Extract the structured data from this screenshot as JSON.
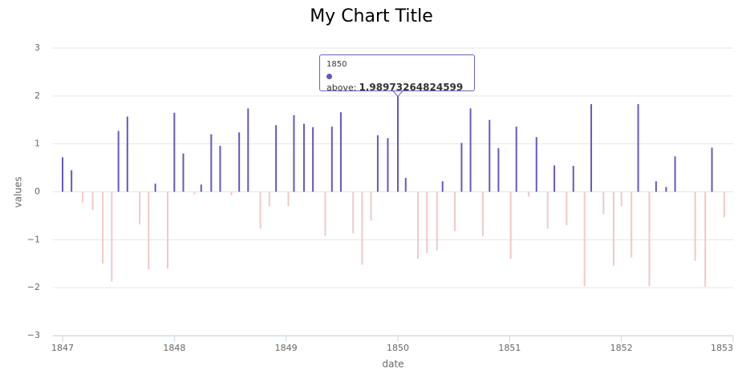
{
  "chart_data": {
    "type": "bar",
    "title": "My Chart Title",
    "x_label": "date",
    "y_label": "values",
    "x": [
      1847.0,
      1847.08,
      1847.18,
      1847.27,
      1847.36,
      1847.44,
      1847.5,
      1847.58,
      1847.69,
      1847.77,
      1847.83,
      1847.94,
      1848.0,
      1848.08,
      1848.18,
      1848.24,
      1848.33,
      1848.41,
      1848.51,
      1848.58,
      1848.66,
      1848.77,
      1848.85,
      1848.91,
      1849.02,
      1849.07,
      1849.16,
      1849.24,
      1849.35,
      1849.41,
      1849.49,
      1849.6,
      1849.68,
      1849.76,
      1849.82,
      1849.91,
      1850,
      1850.07,
      1850.18,
      1850.26,
      1850.35,
      1850.4,
      1850.51,
      1850.57,
      1850.65,
      1850.76,
      1850.82,
      1850.9,
      1851.01,
      1851.06,
      1851.17,
      1851.24,
      1851.34,
      1851.4,
      1851.51,
      1851.57,
      1851.67,
      1851.73,
      1851.84,
      1851.93,
      1852.0,
      1852.09,
      1852.15,
      1852.25,
      1852.31,
      1852.4,
      1852.48,
      1852.66,
      1852.75,
      1852.81,
      1852.92
    ],
    "series": [
      {
        "name": "above",
        "color": "#6457c4",
        "negative_color": "#efc9c9",
        "values": [
          0.72,
          0.45,
          -0.22,
          -0.38,
          -1.5,
          -1.87,
          1.27,
          1.57,
          -0.68,
          -1.62,
          0.17,
          -1.6,
          1.65,
          0.8,
          -0.05,
          0.15,
          1.2,
          0.96,
          -0.07,
          1.24,
          1.74,
          -0.77,
          -0.3,
          1.39,
          -0.3,
          1.6,
          1.42,
          1.35,
          -0.92,
          1.36,
          1.66,
          -0.87,
          -1.52,
          -0.6,
          1.18,
          1.12,
          1.98973264824599,
          0.29,
          -1.4,
          -1.28,
          -1.22,
          0.22,
          -0.82,
          1.02,
          1.74,
          -0.93,
          1.5,
          0.91,
          -1.4,
          1.36,
          -0.1,
          1.14,
          -0.77,
          0.55,
          -0.7,
          0.54,
          -1.97,
          1.83,
          -0.47,
          -1.55,
          -0.3,
          -1.37,
          1.83,
          -1.97,
          0.22,
          0.1,
          0.74,
          -1.44,
          -1.98,
          0.92,
          -0.53
        ]
      }
    ],
    "xlim": [
      1847,
      1853
    ],
    "xticks": [
      1847,
      1848,
      1849,
      1850,
      1851,
      1852,
      1853
    ],
    "ylim": [
      -3,
      3
    ],
    "yticks": [
      {
        "value": -3,
        "label": "−3"
      },
      {
        "value": -2,
        "label": "−2"
      },
      {
        "value": -1,
        "label": "−1"
      },
      0,
      1,
      2,
      3
    ],
    "grid": true,
    "tooltip_index": 36
  }
}
